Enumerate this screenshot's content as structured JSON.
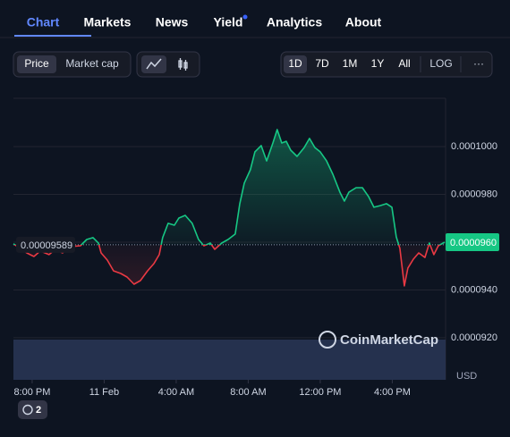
{
  "ui": {
    "tabs": [
      "Chart",
      "Markets",
      "News",
      "Yield",
      "Analytics",
      "About"
    ],
    "active_tab": 0,
    "toggle": [
      "Price",
      "Market cap"
    ],
    "ranges": [
      "1D",
      "7D",
      "1M",
      "1Y",
      "All"
    ],
    "active_range": 0,
    "log": "LOG",
    "more": "···",
    "watermark": "CoinMarketCap",
    "alerts": 2
  },
  "chart_data": {
    "type": "line",
    "x": [
      -1.04,
      -0.3,
      0.1,
      0.45,
      0.94,
      1.29,
      1.69,
      2.09,
      2.68,
      3.03,
      3.38,
      3.68,
      3.83,
      4.17,
      4.52,
      4.92,
      5.27,
      5.66,
      6.01,
      6.41,
      6.76,
      7.06,
      7.25,
      7.55,
      7.9,
      8.15,
      8.5,
      8.89,
      9.24,
      9.54,
      9.89,
      10.14,
      10.53,
      10.88,
      11.28,
      11.53,
      11.78,
      12.12,
      12.37,
      12.72,
      13.02,
      13.37,
      13.61,
      13.86,
      14.11,
      14.36,
      14.71,
      15.11,
      15.4,
      15.7,
      16.0,
      16.35,
      16.7,
      17.09,
      17.34,
      17.59,
      17.99,
      18.34,
      18.68,
      18.98,
      19.33,
      19.68,
      19.98,
      20.22,
      20.42,
      20.67,
      20.87,
      21.17,
      21.47,
      21.81,
      22.06,
      22.31,
      22.56,
      22.91
    ],
    "values": [
      9.593e-05,
      9.555e-05,
      9.54e-05,
      9.563e-05,
      9.548e-05,
      9.57e-05,
      9.555e-05,
      9.581e-05,
      9.585e-05,
      9.611e-05,
      9.619e-05,
      9.596e-05,
      9.555e-05,
      9.525e-05,
      9.48e-05,
      9.469e-05,
      9.454e-05,
      9.424e-05,
      9.439e-05,
      9.48e-05,
      9.51e-05,
      9.548e-05,
      9.619e-05,
      9.679e-05,
      9.671e-05,
      9.701e-05,
      9.712e-05,
      9.679e-05,
      9.611e-05,
      9.585e-05,
      9.596e-05,
      9.57e-05,
      9.596e-05,
      9.611e-05,
      9.634e-05,
      9.761e-05,
      9.847e-05,
      9.903e-05,
      9.978e-05,
      0.00010004,
      9.94e-05,
      0.00010015,
      0.00010071,
      0.00010015,
      0.00010022,
      9.985e-05,
      9.959e-05,
      9.996e-05,
      0.00010034,
      9.996e-05,
      9.978e-05,
      9.94e-05,
      9.884e-05,
      9.809e-05,
      9.772e-05,
      9.809e-05,
      9.828e-05,
      9.828e-05,
      9.791e-05,
      9.746e-05,
      9.753e-05,
      9.761e-05,
      9.746e-05,
      9.622e-05,
      9.574e-05,
      9.417e-05,
      9.492e-05,
      9.529e-05,
      9.555e-05,
      9.536e-05,
      9.596e-05,
      9.548e-05,
      9.585e-05,
      9.6e-05
    ],
    "colors": {
      "up": "#16c784",
      "down": "#ea3943"
    },
    "baseline": 9.589e-05,
    "last_label": "0.0000960",
    "currency": "USD",
    "xlim": [
      -1.04,
      22.96
    ],
    "xticks": [
      {
        "value": 0,
        "label": "8:00 PM"
      },
      {
        "value": 4,
        "label": "11 Feb"
      },
      {
        "value": 8,
        "label": "4:00 AM"
      },
      {
        "value": 12,
        "label": "8:00 AM"
      },
      {
        "value": 16,
        "label": "12:00 PM"
      },
      {
        "value": 20,
        "label": "4:00 PM"
      }
    ],
    "ylim": [
      9.024e-05,
      0.00010202
    ],
    "yticks": [
      {
        "value": 0.0001,
        "label": "0.0001000"
      },
      {
        "value": 9.8e-05,
        "label": "0.0000980"
      },
      {
        "value": 9.6e-05,
        "label": "0.0000960"
      },
      {
        "value": 9.4e-05,
        "label": "0.0000940"
      },
      {
        "value": 9.2e-05,
        "label": "0.0000920"
      }
    ],
    "grid": true
  }
}
